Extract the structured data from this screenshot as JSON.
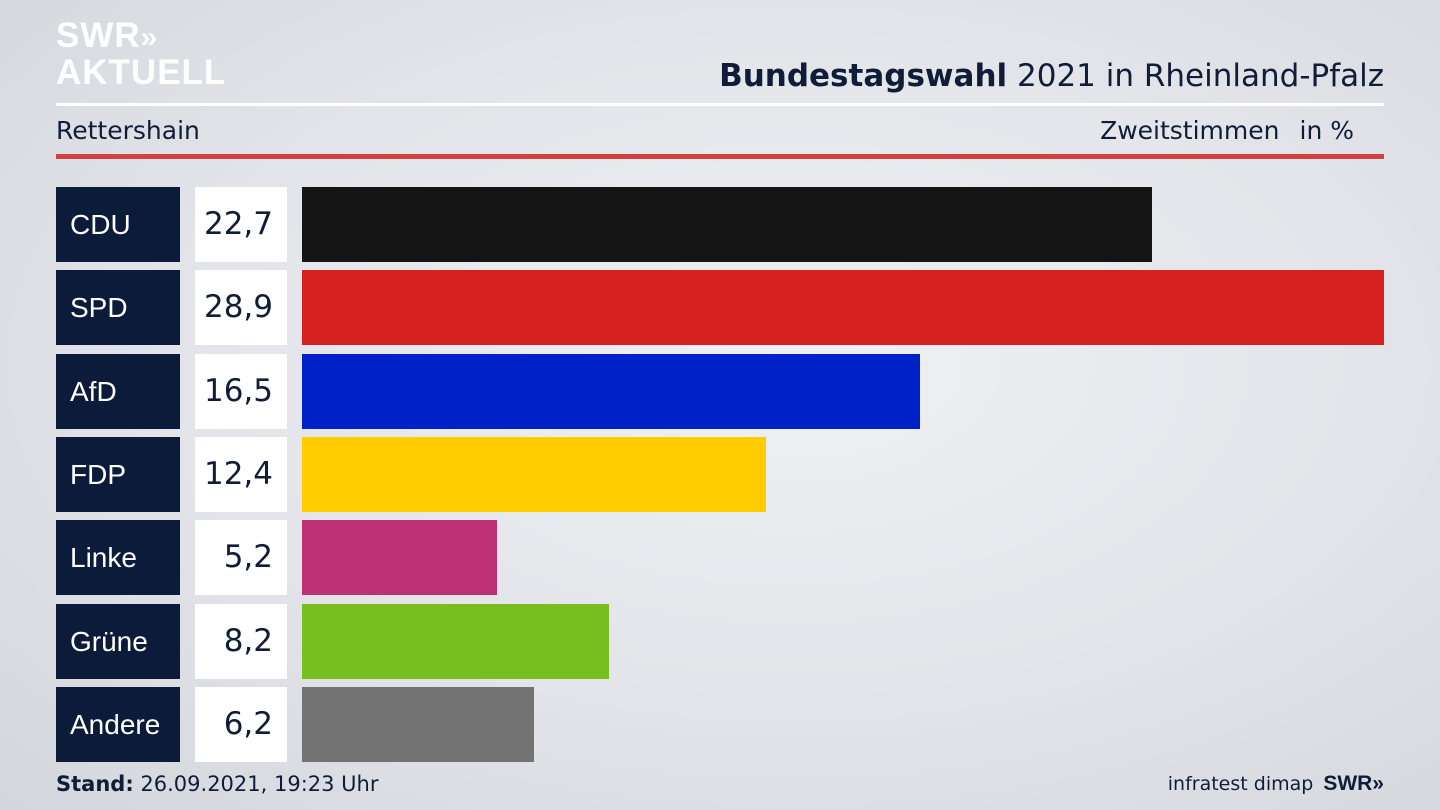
{
  "logo": {
    "line1": "SWR",
    "chevrons": "»",
    "line2": "AKTUELL"
  },
  "header": {
    "title_bold": "Bundestagswahl",
    "title_rest": " 2021 in Rheinland-Pfalz"
  },
  "subheader": {
    "location": "Rettershain",
    "measure": "Zweitstimmen",
    "unit": "in %"
  },
  "footer": {
    "stand_label": "Stand:",
    "stand_value": " 26.09.2021, 19:23 Uhr",
    "source": "infratest dimap",
    "brand": "SWR»"
  },
  "chart_data": {
    "type": "bar",
    "orientation": "horizontal",
    "title": "Bundestagswahl 2021 in Rheinland-Pfalz",
    "subtitle": "Rettershain",
    "ylabel": "Zweitstimmen in %",
    "grid": false,
    "categories": [
      "CDU",
      "SPD",
      "AfD",
      "FDP",
      "Linke",
      "Grüne",
      "Andere"
    ],
    "values": [
      22.7,
      28.9,
      16.5,
      12.4,
      5.2,
      8.2,
      6.2
    ],
    "labels": [
      "22,7",
      "28,9",
      "16,5",
      "12,4",
      "5,2",
      "8,2",
      "6,2"
    ],
    "colors": [
      "#141414",
      "#d72120",
      "#0021c8",
      "#ffcc00",
      "#be3075",
      "#78be1e",
      "#737373"
    ]
  }
}
